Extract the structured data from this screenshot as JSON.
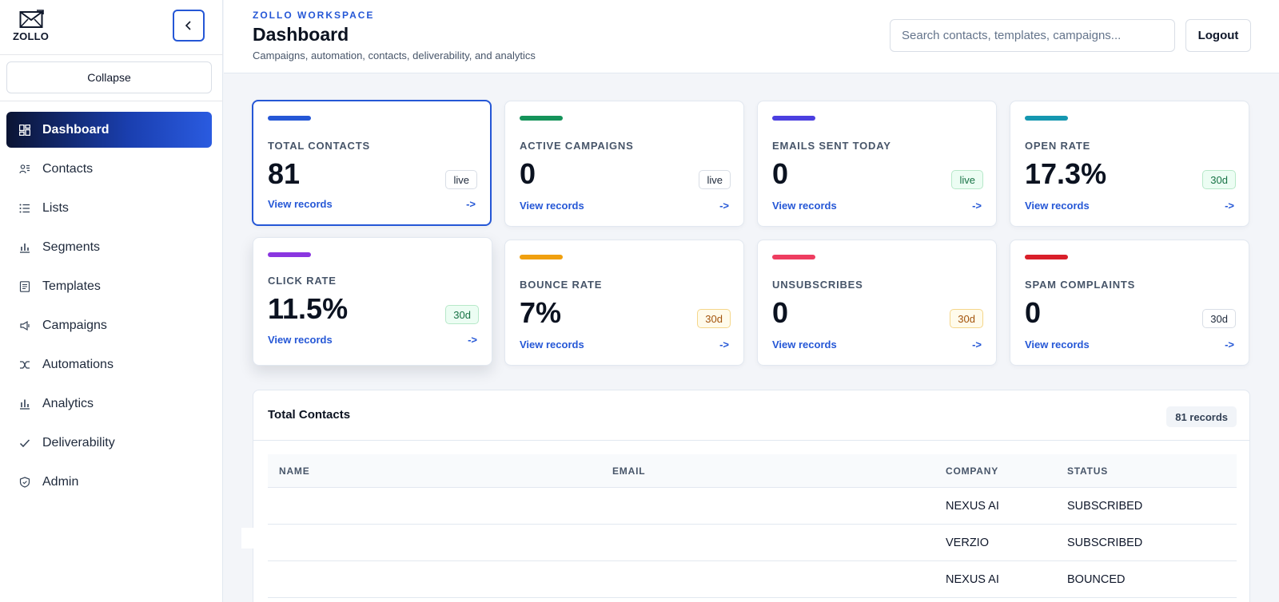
{
  "brand": {
    "name": "ZOLLO",
    "icon": "envelope-icon"
  },
  "sidebar": {
    "collapse_label": "Collapse",
    "items": [
      {
        "label": "Dashboard",
        "icon": "grid-icon",
        "active": true
      },
      {
        "label": "Contacts",
        "icon": "users-icon"
      },
      {
        "label": "Lists",
        "icon": "list-icon"
      },
      {
        "label": "Segments",
        "icon": "bar-chart-icon"
      },
      {
        "label": "Templates",
        "icon": "document-icon"
      },
      {
        "label": "Campaigns",
        "icon": "megaphone-icon"
      },
      {
        "label": "Automations",
        "icon": "branch-icon"
      },
      {
        "label": "Analytics",
        "icon": "analytics-icon"
      },
      {
        "label": "Deliverability",
        "icon": "check-icon"
      },
      {
        "label": "Admin",
        "icon": "shield-icon"
      }
    ]
  },
  "header": {
    "workspace": "ZOLLO WORKSPACE",
    "title": "Dashboard",
    "subtitle": "Campaigns, automation, contacts, deliverability, and analytics",
    "search_placeholder": "Search contacts, templates, campaigns...",
    "logout_label": "Logout"
  },
  "stats": [
    {
      "label": "TOTAL CONTACTS",
      "value": "81",
      "badge": "live",
      "badge_style": "neutral",
      "accent": "#2557d6",
      "link": "View records",
      "arrow": "->"
    },
    {
      "label": "ACTIVE CAMPAIGNS",
      "value": "0",
      "badge": "live",
      "badge_style": "neutral",
      "accent": "#15935a",
      "link": "View records",
      "arrow": "->"
    },
    {
      "label": "EMAILS SENT TODAY",
      "value": "0",
      "badge": "live",
      "badge_style": "green",
      "accent": "#4b3fe0",
      "link": "View records",
      "arrow": "->"
    },
    {
      "label": "OPEN RATE",
      "value": "17.3%",
      "badge": "30d",
      "badge_style": "green",
      "accent": "#1597b0",
      "link": "View records",
      "arrow": "->"
    },
    {
      "label": "CLICK RATE",
      "value": "11.5%",
      "badge": "30d",
      "badge_style": "green",
      "accent": "#8a36e0",
      "link": "View records",
      "arrow": "->"
    },
    {
      "label": "BOUNCE RATE",
      "value": "7%",
      "badge": "30d",
      "badge_style": "amber",
      "accent": "#f0a00f",
      "link": "View records",
      "arrow": "->"
    },
    {
      "label": "UNSUBSCRIBES",
      "value": "0",
      "badge": "30d",
      "badge_style": "amber",
      "accent": "#ee3d60",
      "link": "View records",
      "arrow": "->"
    },
    {
      "label": "SPAM COMPLAINTS",
      "value": "0",
      "badge": "30d",
      "badge_style": "neutral",
      "accent": "#d91f2a",
      "link": "View records",
      "arrow": "->"
    }
  ],
  "table": {
    "title": "Total Contacts",
    "count": "81 records",
    "columns": [
      "NAME",
      "EMAIL",
      "COMPANY",
      "STATUS"
    ],
    "rows": [
      {
        "name": "",
        "email": "",
        "company": "NEXUS AI",
        "status": "SUBSCRIBED"
      },
      {
        "name": "",
        "email": "",
        "company": "VERZIO",
        "status": "SUBSCRIBED"
      },
      {
        "name": "",
        "email": "",
        "company": "NEXUS AI",
        "status": "BOUNCED"
      }
    ]
  }
}
